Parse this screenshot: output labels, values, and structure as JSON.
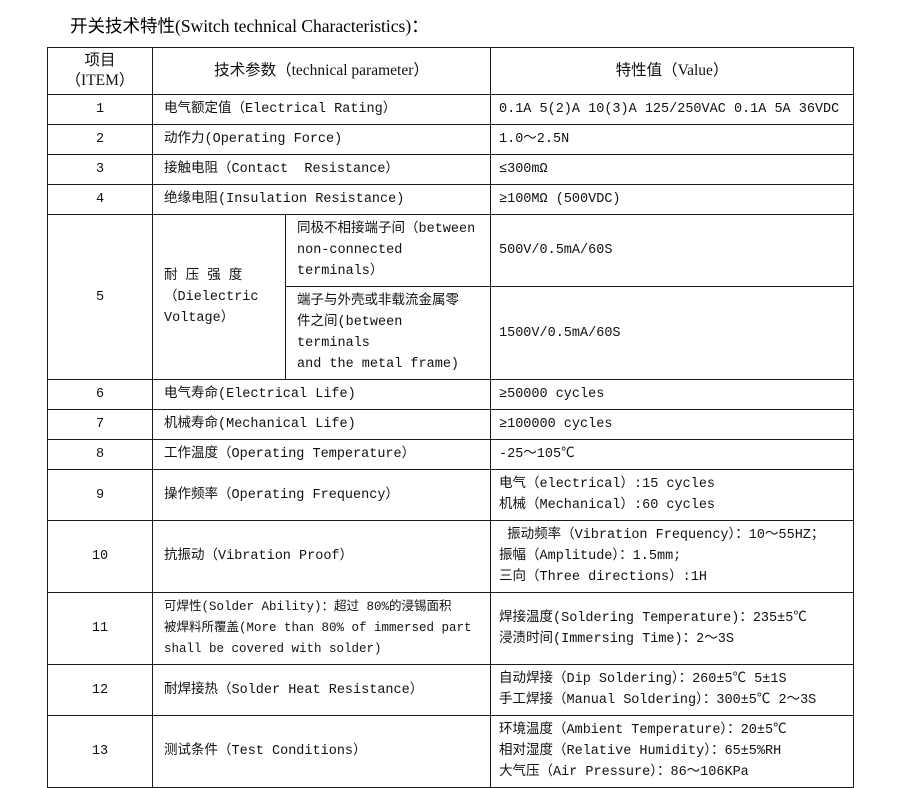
{
  "title": "开关技术特性(Switch technical Characteristics)：",
  "colors": {
    "background": "#ffffff",
    "text": "#111111",
    "border": "#1c1c1c"
  },
  "table": {
    "header": {
      "item": "项目\n（ITEM）",
      "parameter": "技术参数（technical parameter）",
      "value": "特性值（Value）"
    },
    "rows": [
      {
        "item": "1",
        "param": "电气额定值（Electrical Rating）",
        "value": "0.1A 5(2)A 10(3)A 125/250VAC 0.1A 5A 36VDC"
      },
      {
        "item": "2",
        "param": "动作力(Operating Force)",
        "value": "1.0～2.5N"
      },
      {
        "item": "3",
        "param": "接触电阻（Contact  Resistance）",
        "value": "≤300mΩ"
      },
      {
        "item": "4",
        "param": "绝缘电阻(Insulation Resistance)",
        "value": "≥100MΩ (500VDC)"
      },
      {
        "item": "6",
        "param": "电气寿命(Electrical Life)",
        "value": "≥50000 cycles"
      },
      {
        "item": "7",
        "param": "机械寿命(Mechanical Life)",
        "value": "≥100000 cycles"
      },
      {
        "item": "8",
        "param": "工作温度（Operating Temperature）",
        "value": "-25～105℃"
      },
      {
        "item": "9",
        "param": "操作频率（Operating Frequency）",
        "value": "电气（electrical）:15 cycles\n机械（Mechanical）:60 cycles"
      },
      {
        "item": "10",
        "param": "抗振动（Vibration Proof）",
        "value": " 振动频率（Vibration Frequency）：10～55HZ；\n振幅（Amplitude）：1.5mm;\n三向（Three directions）:1H"
      },
      {
        "item": "11",
        "param": "可焊性(Solder Ability)：超过 80%的浸锡面积\n被焊料所覆盖(More than 80% of immersed part\nshall be covered with solder)",
        "value": "焊接温度(Soldering Temperature)：235±5℃\n浸渍时间(Immersing Time)：2～3S"
      },
      {
        "item": "12",
        "param": "耐焊接热（Solder Heat Resistance）",
        "value": "自动焊接（Dip Soldering）：260±5℃ 5±1S\n手工焊接（Manual Soldering）：300±5℃ 2～3S"
      },
      {
        "item": "13",
        "param": "测试条件（Test Conditions）",
        "value": "环境温度（Ambient Temperature）：20±5℃\n相对湿度（Relative Humidity）：65±5%RH\n大气压（Air Pressure）：86～106KPa"
      }
    ],
    "dielectric_row": {
      "item": "5",
      "param": "耐 压 强 度\n（Dielectric\nVoltage）",
      "sub1_param": "同极不相接端子间（between\nnon-connected terminals）",
      "sub1_value": "500V/0.5mA/60S",
      "sub2_param": "端子与外壳或非载流金属零\n件之间(between terminals\nand the metal frame)",
      "sub2_value": "1500V/0.5mA/60S"
    }
  }
}
